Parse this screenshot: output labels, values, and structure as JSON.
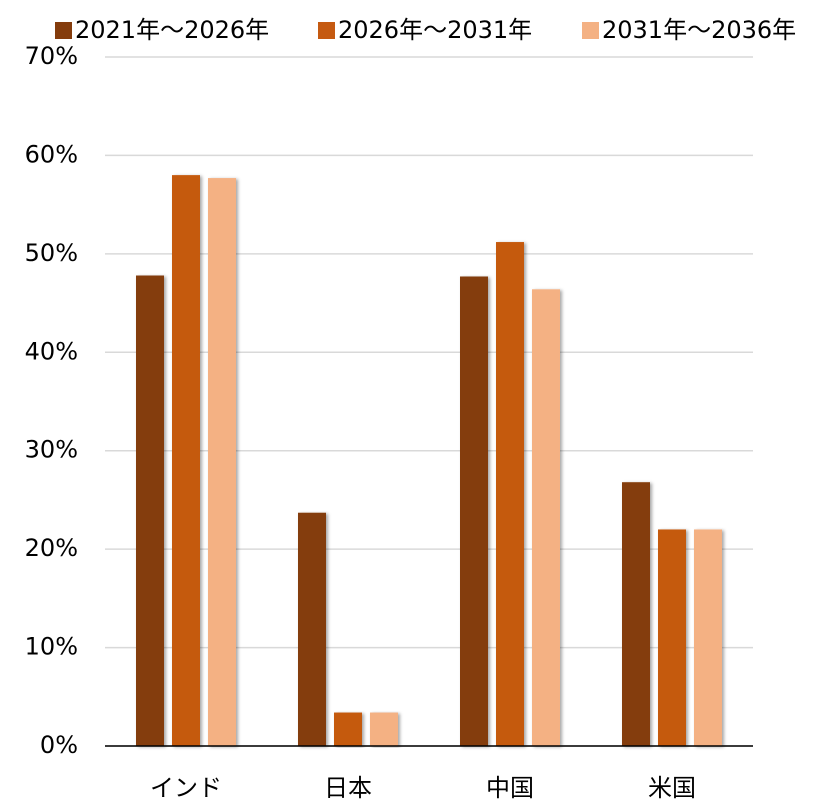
{
  "chart_data": {
    "type": "bar",
    "categories": [
      "インド",
      "日本",
      "中国",
      "米国"
    ],
    "series": [
      {
        "name": "2021年～2026年",
        "color": "#843c0c",
        "values": [
          47.8,
          23.7,
          47.7,
          26.8
        ]
      },
      {
        "name": "2026年～2031年",
        "color": "#c55a11",
        "values": [
          58.0,
          3.4,
          51.2,
          22.0
        ]
      },
      {
        "name": "2031年～2036年",
        "color": "#f4b183",
        "values": [
          57.7,
          3.4,
          46.4,
          22.0
        ]
      }
    ],
    "ylim": [
      0,
      70
    ],
    "yticks": [
      {
        "value": 0,
        "label": "0%"
      },
      {
        "value": 10,
        "label": "10%"
      },
      {
        "value": 20,
        "label": "20%"
      },
      {
        "value": 30,
        "label": "30%"
      },
      {
        "value": 40,
        "label": "40%"
      },
      {
        "value": 50,
        "label": "50%"
      },
      {
        "value": 60,
        "label": "60%"
      },
      {
        "value": 70,
        "label": "70%"
      }
    ],
    "grid": true,
    "legend": "top"
  }
}
